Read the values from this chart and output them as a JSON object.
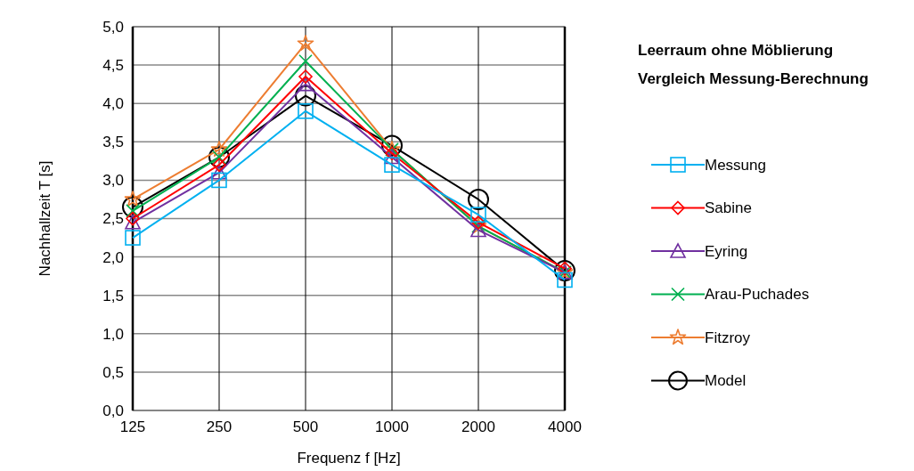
{
  "chart_data": {
    "type": "line",
    "title": "Leerraum ohne Möblierung",
    "subtitle": "Vergleich Messung-Berechnung",
    "xlabel": "Frequenz f [Hz]",
    "ylabel": "Nachhallzeit T [s]",
    "categories": [
      "125",
      "250",
      "500",
      "1000",
      "2000",
      "4000"
    ],
    "ylim": [
      0,
      5
    ],
    "yticks": [
      {
        "value": 0,
        "label": "0,0"
      },
      {
        "value": 0.5,
        "label": "0,5"
      },
      {
        "value": 1,
        "label": "1,0"
      },
      {
        "value": 1.5,
        "label": "1,5"
      },
      {
        "value": 2,
        "label": "2,0"
      },
      {
        "value": 2.5,
        "label": "2,5"
      },
      {
        "value": 3,
        "label": "3,0"
      },
      {
        "value": 3.5,
        "label": "3,5"
      },
      {
        "value": 4,
        "label": "4,0"
      },
      {
        "value": 4.5,
        "label": "4,5"
      },
      {
        "value": 5,
        "label": "5,0"
      }
    ],
    "grid": true,
    "legend": "right",
    "series": [
      {
        "name": "Messung",
        "color": "#00b0f0",
        "marker": "square",
        "values": [
          2.25,
          3.0,
          3.9,
          3.2,
          2.55,
          1.7
        ]
      },
      {
        "name": "Sabine",
        "color": "#ff0000",
        "marker": "diamond",
        "values": [
          2.5,
          3.2,
          4.35,
          3.35,
          2.45,
          1.85
        ]
      },
      {
        "name": "Eyring",
        "color": "#7030a0",
        "marker": "triangle",
        "values": [
          2.45,
          3.1,
          4.25,
          3.3,
          2.35,
          1.8
        ]
      },
      {
        "name": "Arau-Puchades",
        "color": "#00b050",
        "marker": "cross",
        "values": [
          2.6,
          3.3,
          4.55,
          3.4,
          2.4,
          1.8
        ]
      },
      {
        "name": "Fitzroy",
        "color": "#ed7d31",
        "marker": "star",
        "values": [
          2.75,
          3.4,
          4.78,
          3.4,
          2.4,
          1.8
        ]
      },
      {
        "name": "Model",
        "color": "#000000",
        "marker": "circle",
        "values": [
          2.65,
          3.3,
          4.1,
          3.45,
          2.75,
          1.82
        ]
      }
    ]
  }
}
